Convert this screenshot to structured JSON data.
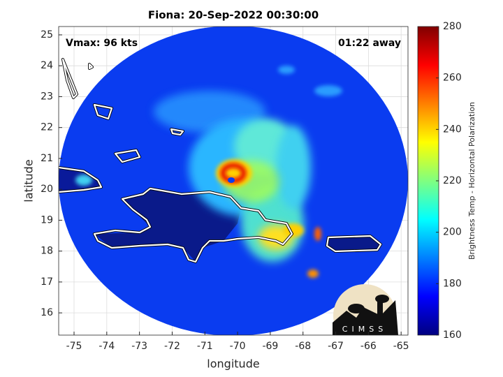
{
  "chart_data": {
    "type": "image",
    "title": "Fiona: 20-Sep-2022 00:30:00",
    "annotations": [
      "Vmax: 96 kts",
      "01:22 away"
    ],
    "xlabel": "longitude",
    "ylabel": "latitude",
    "xlim": [
      -75.47,
      -64.79
    ],
    "xticks": [
      -75,
      -74,
      -73,
      -72,
      -71,
      -70,
      -69,
      -68,
      -67,
      -66,
      -65
    ],
    "ylim": [
      15.28,
      25.27
    ],
    "yticks": [
      16,
      17,
      18,
      19,
      20,
      21,
      22,
      23,
      24,
      25
    ],
    "grid": true,
    "colormap": "jet",
    "colorbar": {
      "label": "Brightness Temp - Horizontal Polarization",
      "lim": [
        160,
        280
      ],
      "ticks": [
        160,
        180,
        200,
        220,
        240,
        260,
        280
      ]
    },
    "logo_text": "CIMSS"
  }
}
